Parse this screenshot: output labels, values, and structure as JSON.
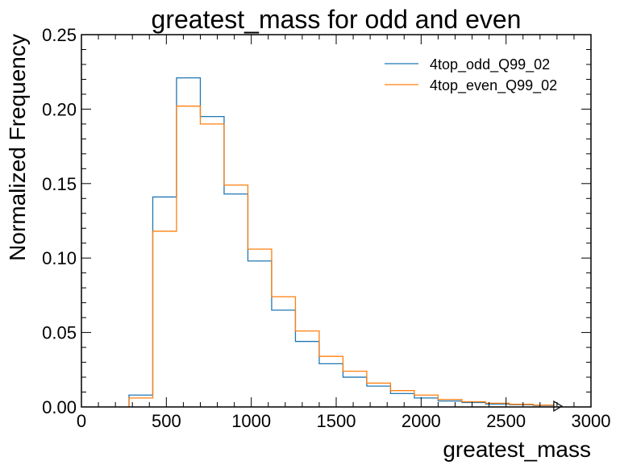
{
  "chart_data": {
    "type": "step",
    "title": "greatest_mass for odd and even",
    "xlabel": "greatest_mass",
    "ylabel": "Normalized Frequency",
    "xlim": [
      0,
      3000
    ],
    "ylim": [
      0,
      0.25
    ],
    "xticks": [
      0,
      500,
      1000,
      1500,
      2000,
      2500,
      3000
    ],
    "xtick_labels": [
      "0",
      "500",
      "1000",
      "1500",
      "2000",
      "2500",
      "3000"
    ],
    "yticks": [
      0,
      0.05,
      0.1,
      0.15,
      0.2,
      0.25
    ],
    "ytick_labels": [
      "0.00",
      "0.05",
      "0.10",
      "0.15",
      "0.20",
      "0.25"
    ],
    "legend_position": "top-right",
    "overflow_marker": true,
    "bin_edges": [
      280,
      420,
      560,
      700,
      840,
      980,
      1120,
      1260,
      1400,
      1540,
      1680,
      1820,
      1960,
      2100,
      2240,
      2380,
      2520,
      2660,
      2800
    ],
    "series": [
      {
        "name": "4top_odd_Q99_02",
        "color": "#1f77b4",
        "values": [
          0.008,
          0.141,
          0.221,
          0.195,
          0.143,
          0.098,
          0.065,
          0.044,
          0.029,
          0.02,
          0.014,
          0.009,
          0.006,
          0.004,
          0.003,
          0.002,
          0.0015,
          0.001
        ]
      },
      {
        "name": "4top_even_Q99_02",
        "color": "#ff7f0e",
        "values": [
          0.006,
          0.118,
          0.202,
          0.19,
          0.149,
          0.106,
          0.074,
          0.051,
          0.034,
          0.024,
          0.016,
          0.011,
          0.008,
          0.005,
          0.0035,
          0.0025,
          0.0018,
          0.0012
        ]
      }
    ]
  }
}
